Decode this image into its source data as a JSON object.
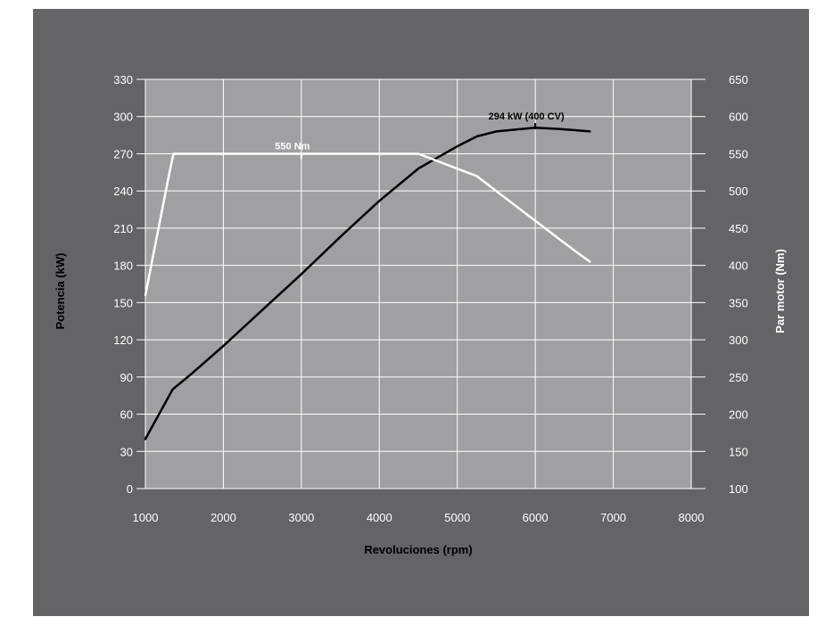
{
  "chart_data": {
    "type": "line",
    "title": "",
    "xlabel": "Revoluciones (rpm)",
    "ylabel_left": "Potencia (kW)",
    "ylabel_right": "Par motor (Nm)",
    "xlim": [
      1000,
      8000
    ],
    "ylim_left": [
      0,
      330
    ],
    "ylim_right": [
      100,
      650
    ],
    "x_ticks": [
      1000,
      2000,
      3000,
      4000,
      5000,
      6000,
      7000,
      8000
    ],
    "y_ticks_left": [
      0,
      30,
      60,
      90,
      120,
      150,
      180,
      210,
      240,
      270,
      300,
      330
    ],
    "y_ticks_right": [
      100,
      150,
      200,
      250,
      300,
      350,
      400,
      450,
      500,
      550,
      600,
      650
    ],
    "grid": true,
    "series": [
      {
        "axis": "left",
        "color": "#000000",
        "x": [
          1000,
          1350,
          1600,
          2000,
          2500,
          3000,
          3500,
          4000,
          4500,
          5000,
          5250,
          5500,
          6000,
          6300,
          6700
        ],
        "values": [
          40,
          80,
          93,
          115,
          144,
          173,
          203,
          232,
          258,
          276,
          284,
          288,
          291,
          290,
          288
        ]
      },
      {
        "axis": "right",
        "color": "#ffffff",
        "x": [
          1000,
          1300,
          1360,
          4500,
          5250,
          5500,
          6000,
          6500,
          6700
        ],
        "values": [
          360,
          520,
          550,
          550,
          520,
          500,
          460,
          420,
          405
        ]
      }
    ],
    "annotations": [
      {
        "text": "294 kW (400 CV)",
        "x": 6000,
        "value": 294,
        "axis": "left",
        "color": "#000000"
      },
      {
        "text": "550 Nm",
        "x": 3000,
        "value": 550,
        "axis": "right",
        "color": "#ffffff"
      }
    ]
  },
  "colors": {
    "background": "#646467",
    "plot_area": "#a0a0a2",
    "grid": "#ffffff"
  }
}
